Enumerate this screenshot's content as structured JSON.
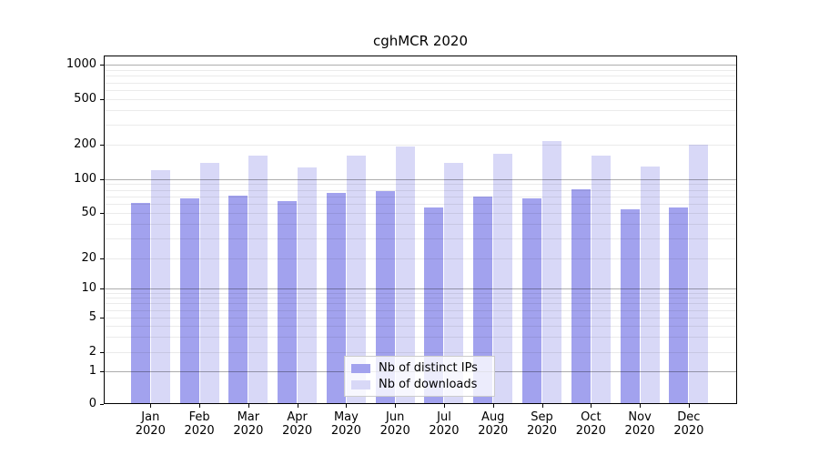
{
  "title": "cghMCR 2020",
  "colors": {
    "ips": "#a2a2ee",
    "downloads": "#d8d8f7",
    "grid_major": "rgba(0,0,0,0.32)",
    "grid_minor": "rgba(0,0,0,0.08)",
    "spine": "#000000",
    "background": "#ffffff"
  },
  "legend": {
    "items": [
      {
        "label": "Nb of distinct IPs",
        "series": "ips"
      },
      {
        "label": "Nb of downloads",
        "series": "downloads"
      }
    ]
  },
  "y_axis": {
    "tick_labels": [
      "0",
      "1",
      "2",
      "5",
      "10",
      "20",
      "50",
      "100",
      "200",
      "500",
      "1000"
    ]
  },
  "x_axis": {
    "months": [
      "Jan",
      "Feb",
      "Mar",
      "Apr",
      "May",
      "Jun",
      "Jul",
      "Aug",
      "Sep",
      "Oct",
      "Nov",
      "Dec"
    ],
    "year": "2020"
  },
  "chart_data": {
    "type": "bar",
    "title": "cghMCR 2020",
    "categories": [
      "Jan 2020",
      "Feb 2020",
      "Mar 2020",
      "Apr 2020",
      "May 2020",
      "Jun 2020",
      "Jul 2020",
      "Aug 2020",
      "Sep 2020",
      "Oct 2020",
      "Nov 2020",
      "Dec 2020"
    ],
    "series": [
      {
        "name": "Nb of distinct IPs",
        "values": [
          61,
          68,
          71,
          64,
          75,
          78,
          56,
          70,
          68,
          81,
          54,
          56
        ]
      },
      {
        "name": "Nb of downloads",
        "values": [
          119,
          137,
          160,
          126,
          160,
          192,
          138,
          166,
          216,
          160,
          128,
          200
        ]
      }
    ],
    "xlabel": "",
    "ylabel": "",
    "yscale": "symlog",
    "y_ticks": [
      0,
      1,
      2,
      5,
      10,
      20,
      50,
      100,
      200,
      500,
      1000
    ],
    "ylim": [
      0,
      1000
    ],
    "grid": true,
    "legend_position": "lower center"
  }
}
